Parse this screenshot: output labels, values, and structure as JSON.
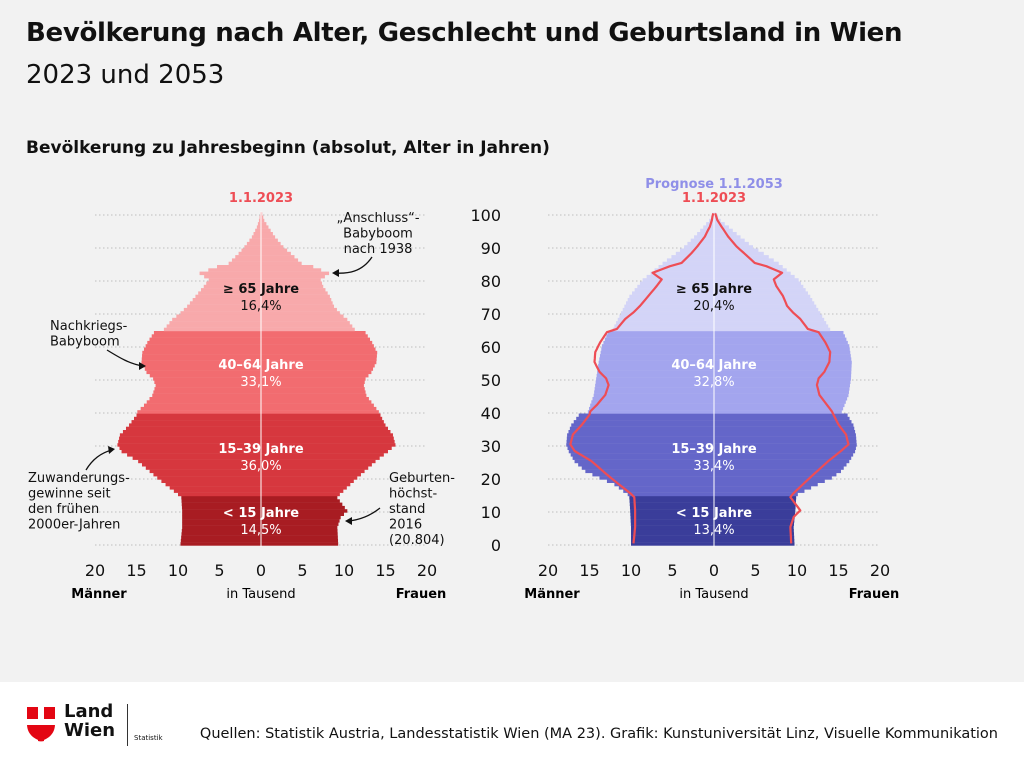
{
  "header": {
    "title": "Bevölkerung nach Alter, Geschlecht und Geburtsland in Wien",
    "subtitle": "2023 und 2053",
    "section_title": "Bevölkerung zu Jahresbeginn (absolut, Alter in Jahren)"
  },
  "footer": {
    "logo_line1": "Land",
    "logo_line2": "Wien",
    "logo_sub": "Statistik",
    "sources": "Quellen: Statistik Austria, Landesstatistik Wien (MA 23). Grafik: Kunstuniversität Linz, Visuelle Kommunikation"
  },
  "colors": {
    "band_2023": [
      "#a81c22",
      "#d6373e",
      "#f26c70",
      "#f8a9ab"
    ],
    "band_2053": [
      "#3a3d9a",
      "#6466c9",
      "#a3a5ee",
      "#d3d4f7"
    ],
    "line_2023": "#ee4d55",
    "label_2053": "#8f8fe8"
  },
  "chart_data": [
    {
      "type": "bar",
      "orientation": "horizontal-pyramid",
      "legend": "1.1.2023",
      "xlabel_left": "Männer",
      "xlabel_center": "in Tausend",
      "xlabel_right": "Frauen",
      "xlim": [
        -20,
        20
      ],
      "xticks": [
        "20",
        "15",
        "10",
        "5",
        "0",
        "5",
        "10",
        "15",
        "20"
      ],
      "ylim": [
        0,
        100
      ],
      "yticks": [
        "0",
        "10",
        "20",
        "30",
        "40",
        "50",
        "60",
        "70",
        "80",
        "90",
        "100"
      ],
      "age_groups": [
        {
          "label": "< 15 Jahre",
          "share": "14,5%",
          "from": 0,
          "to": 14
        },
        {
          "label": "15–39 Jahre",
          "share": "36,0%",
          "from": 15,
          "to": 39
        },
        {
          "label": "40–64 Jahre",
          "share": "33,1%",
          "from": 40,
          "to": 64
        },
        {
          "label": "≥ 65 Jahre",
          "share": "16,4%",
          "from": 65,
          "to": 100
        }
      ],
      "series": [
        {
          "name": "Männer",
          "age_anchors": [
            0,
            5,
            10,
            14,
            15,
            20,
            25,
            28,
            30,
            33,
            36,
            39,
            40,
            42,
            45,
            48,
            50,
            52,
            55,
            58,
            61,
            64,
            65,
            68,
            70,
            72,
            75,
            78,
            80,
            82,
            84,
            85,
            88,
            90,
            93,
            96,
            98,
            100
          ],
          "values_thousand": [
            9.7,
            9.5,
            9.5,
            9.6,
            10.0,
            12.5,
            14.8,
            16.8,
            17.3,
            17.0,
            15.9,
            15.0,
            14.9,
            14.1,
            13.1,
            12.7,
            13.0,
            13.8,
            14.4,
            14.3,
            13.7,
            12.9,
            11.7,
            10.7,
            9.7,
            8.9,
            7.9,
            6.9,
            6.3,
            7.4,
            5.3,
            3.9,
            2.7,
            2.0,
            1.1,
            0.5,
            0.25,
            0.1
          ]
        },
        {
          "name": "Frauen",
          "age_anchors": [
            0,
            5,
            8,
            10,
            12,
            14,
            15,
            20,
            25,
            28,
            30,
            33,
            36,
            39,
            40,
            42,
            45,
            48,
            50,
            52,
            55,
            58,
            61,
            64,
            65,
            68,
            70,
            72,
            75,
            78,
            80,
            82,
            84,
            85,
            88,
            90,
            93,
            96,
            98,
            100
          ],
          "values_thousand": [
            9.3,
            9.2,
            9.6,
            10.4,
            9.8,
            9.2,
            9.5,
            11.6,
            13.8,
            15.3,
            16.2,
            15.9,
            15.0,
            14.4,
            14.2,
            13.6,
            12.7,
            12.4,
            12.6,
            13.3,
            13.9,
            14.0,
            13.4,
            12.6,
            11.3,
            10.4,
            9.5,
            8.8,
            8.3,
            7.5,
            7.2,
            8.2,
            6.3,
            4.9,
            3.6,
            2.7,
            1.7,
            0.9,
            0.4,
            0.15
          ]
        }
      ],
      "annotations": [
        {
          "id": "anschluss",
          "text": [
            "„Anschluss“-",
            "Babyboom",
            "nach 1938"
          ]
        },
        {
          "id": "nachkrieg",
          "text": [
            "Nachkriegs-",
            "Babyboom"
          ]
        },
        {
          "id": "zuwanderung",
          "text": [
            "Zuwanderungs-",
            "gewinne seit",
            "den frühen",
            "2000er-Jahren"
          ]
        },
        {
          "id": "geburten",
          "text": [
            "Geburten-",
            "höchst-",
            "stand",
            "2016",
            "(20.804)"
          ]
        }
      ]
    },
    {
      "type": "bar",
      "orientation": "horizontal-pyramid",
      "legend": [
        "Prognose 1.1.2053",
        "1.1.2023"
      ],
      "xlabel_left": "Männer",
      "xlabel_center": "in Tausend",
      "xlabel_right": "Frauen",
      "xlim": [
        -20,
        20
      ],
      "xticks": [
        "20",
        "15",
        "10",
        "5",
        "0",
        "5",
        "10",
        "15",
        "20"
      ],
      "ylim": [
        0,
        100
      ],
      "age_groups": [
        {
          "label": "< 15 Jahre",
          "share": "13,4%",
          "from": 0,
          "to": 14
        },
        {
          "label": "15–39 Jahre",
          "share": "33,4%",
          "from": 15,
          "to": 39
        },
        {
          "label": "40–64 Jahre",
          "share": "32,8%",
          "from": 40,
          "to": 64
        },
        {
          "label": "≥ 65 Jahre",
          "share": "20,4%",
          "from": 65,
          "to": 100
        }
      ],
      "series": [
        {
          "name": "Männer 2053",
          "age_anchors": [
            0,
            5,
            10,
            14,
            15,
            18,
            20,
            22,
            25,
            28,
            30,
            33,
            36,
            39,
            40,
            45,
            50,
            55,
            60,
            64,
            65,
            70,
            75,
            80,
            85,
            88,
            90,
            93,
            96,
            98,
            100
          ],
          "values_thousand": [
            10.0,
            10.0,
            10.1,
            10.2,
            10.4,
            12.0,
            13.8,
            15.5,
            16.8,
            17.5,
            17.8,
            17.7,
            17.2,
            16.3,
            15.2,
            14.5,
            14.2,
            13.9,
            13.5,
            12.8,
            12.2,
            11.2,
            10.2,
            8.6,
            6.2,
            4.6,
            3.6,
            2.4,
            1.3,
            0.6,
            0.15
          ]
        },
        {
          "name": "Frauen 2053",
          "age_anchors": [
            0,
            5,
            10,
            14,
            15,
            18,
            20,
            22,
            25,
            28,
            30,
            33,
            36,
            39,
            40,
            45,
            50,
            55,
            60,
            64,
            65,
            70,
            75,
            80,
            85,
            88,
            90,
            93,
            96,
            98,
            100
          ],
          "values_thousand": [
            9.7,
            9.6,
            9.8,
            9.9,
            10.1,
            12.5,
            14.2,
            15.3,
            16.3,
            17.0,
            17.2,
            17.1,
            16.8,
            16.1,
            15.4,
            16.2,
            16.5,
            16.6,
            16.3,
            15.6,
            14.0,
            12.8,
            11.6,
            10.2,
            7.8,
            6.0,
            4.7,
            3.2,
            1.8,
            0.8,
            0.2
          ]
        }
      ]
    }
  ]
}
